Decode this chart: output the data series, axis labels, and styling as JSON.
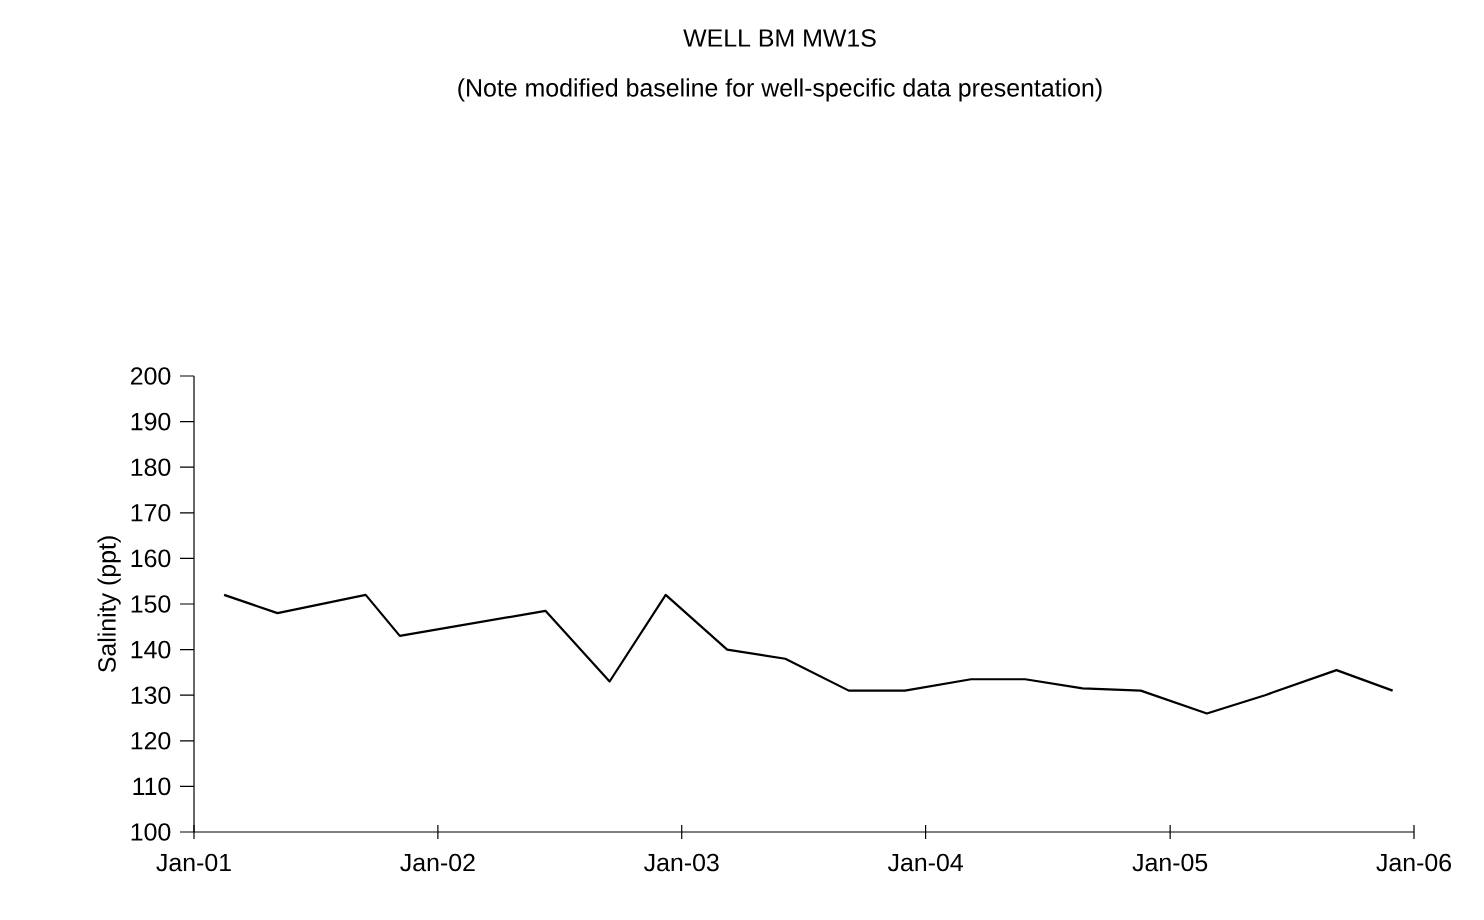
{
  "chart_data": {
    "type": "line",
    "title": "WELL BM MW1S",
    "subtitle": "(Note modified baseline for well-specific data presentation)",
    "ylabel": "Salinity (ppt)",
    "x": [
      "2001-02-15",
      "2001-05-06",
      "2001-09-15",
      "2001-11-05",
      "2002-06-11",
      "2002-09-15",
      "2002-12-08",
      "2003-03-10",
      "2003-06-05",
      "2003-09-08",
      "2003-12-01",
      "2004-03-09",
      "2004-05-29",
      "2004-08-23",
      "2004-11-18",
      "2005-02-25",
      "2005-05-23",
      "2005-09-07",
      "2005-11-30"
    ],
    "series": [
      {
        "color": "#000000",
        "values": [
          152,
          148,
          152,
          143,
          148.5,
          133,
          152,
          140,
          138,
          131,
          131,
          133.5,
          133.5,
          131.5,
          131,
          126,
          130,
          135.5,
          131
        ]
      }
    ],
    "xlim": [
      "2001-01-01",
      "2006-01-01"
    ],
    "xticks": [
      {
        "value": "2001-01-01",
        "label": "Jan-01"
      },
      {
        "value": "2002-01-01",
        "label": "Jan-02"
      },
      {
        "value": "2003-01-01",
        "label": "Jan-03"
      },
      {
        "value": "2004-01-01",
        "label": "Jan-04"
      },
      {
        "value": "2005-01-01",
        "label": "Jan-05"
      },
      {
        "value": "2006-01-01",
        "label": "Jan-06"
      }
    ],
    "ylim": [
      100,
      200
    ],
    "yticks": [
      100,
      110,
      120,
      130,
      140,
      150,
      160,
      170,
      180,
      190,
      200
    ],
    "grid": false,
    "marker": "none",
    "line_style": "solid"
  }
}
